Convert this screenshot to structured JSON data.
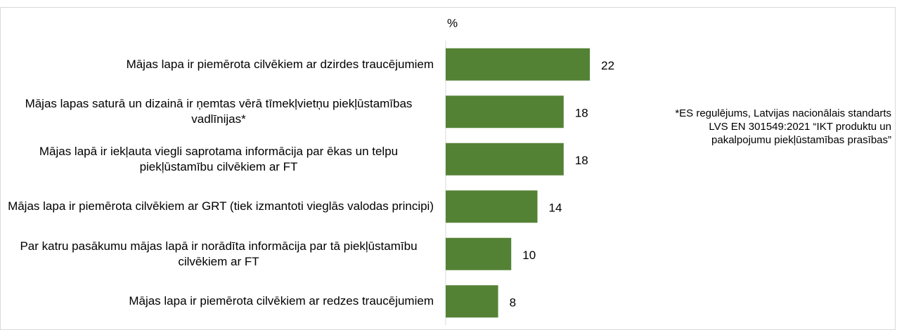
{
  "chart_data": {
    "type": "bar",
    "orientation": "horizontal",
    "x_label": "%",
    "annotation": "*ES regulējums, Latvijas nacionālais standarts LVS EN 301549:2021 “IKT produktu un pakalpojumu piekļūstamības prasības”",
    "categories": [
      "Mājas lapa ir piemērota cilvēkiem ar dzirdes traucējumiem",
      "Mājas lapas saturā un dizainā ir ņemtas vērā tīmekļvietņu piekļūstamības vadlīnijas*",
      "Mājas lapā ir iekļauta viegli saprotama informācija par ēkas un telpu piekļūstamību cilvēkiem ar FT",
      "Mājas lapa ir piemērota cilvēkiem ar GRT (tiek izmantoti vieglās valodas principi)",
      "Par katru pasākumu mājas lapā ir norādīta informācija par tā piekļūstamību cilvēkiem ar FT",
      "Mājas lapa ir piemērota cilvēkiem ar redzes traucējumiem"
    ],
    "values": [
      22,
      18,
      18,
      14,
      10,
      8
    ],
    "color": "#548235",
    "xlim": [
      0,
      68
    ]
  }
}
